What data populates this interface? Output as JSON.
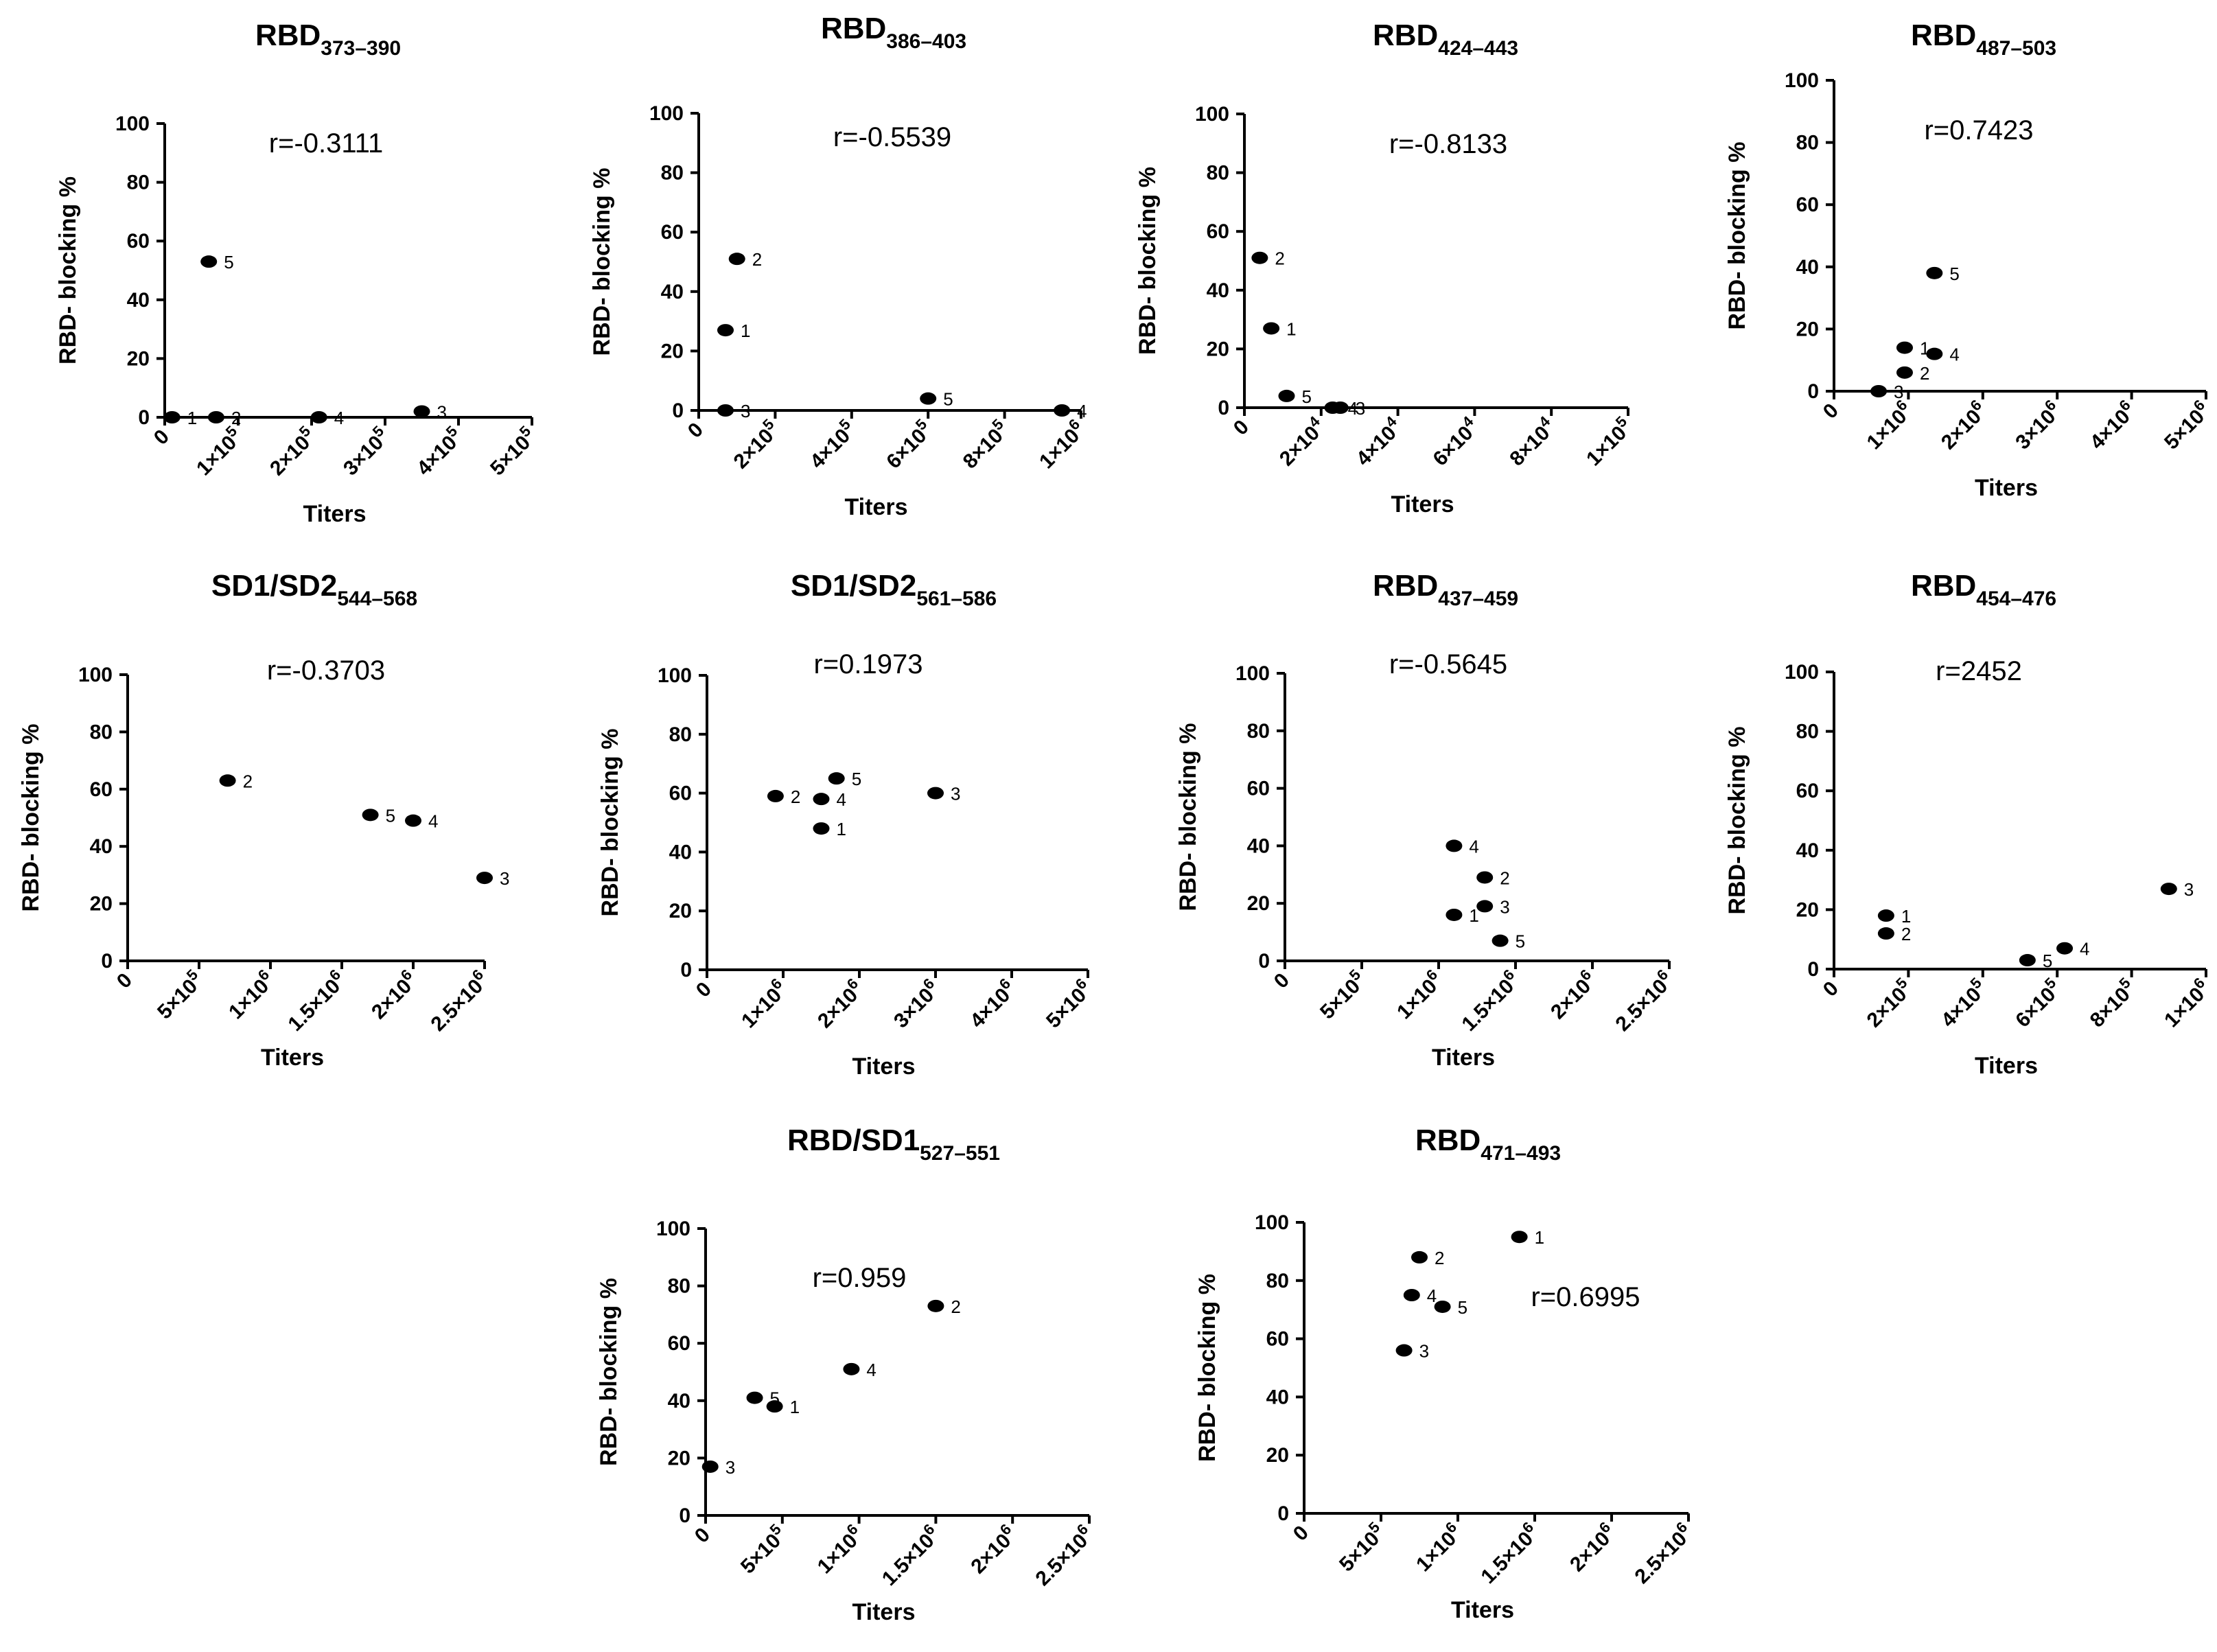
{
  "chart_data": [
    {
      "type": "scatter",
      "title": "RBD",
      "title_sub": "373–390",
      "xlabel": "Titers",
      "ylabel": "RBD- blocking %",
      "xlim": [
        0,
        500000
      ],
      "ylim": [
        0,
        100
      ],
      "x_ticks": [
        0,
        100000,
        200000,
        300000,
        400000,
        500000
      ],
      "x_tick_labels": [
        "0",
        "1×10^5",
        "2×10^5",
        "3×10^5",
        "4×10^5",
        "5×10^5"
      ],
      "y_ticks": [
        0,
        20,
        40,
        60,
        80,
        100
      ],
      "y_tick_labels": [
        "0",
        "20",
        "40",
        "60",
        "80",
        "100"
      ],
      "annotation": "r=-0.3111",
      "points": [
        {
          "label": "1",
          "x": 10000,
          "y": 0
        },
        {
          "label": "2",
          "x": 70000,
          "y": 0
        },
        {
          "label": "3",
          "x": 350000,
          "y": 2
        },
        {
          "label": "4",
          "x": 210000,
          "y": 0
        },
        {
          "label": "5",
          "x": 60000,
          "y": 53
        }
      ]
    },
    {
      "type": "scatter",
      "title": "RBD",
      "title_sub": "386–403",
      "xlabel": "Titers",
      "ylabel": "RBD- blocking %",
      "xlim": [
        0,
        1000000
      ],
      "ylim": [
        0,
        100
      ],
      "x_ticks": [
        0,
        200000,
        400000,
        600000,
        800000,
        1000000
      ],
      "x_tick_labels": [
        "0",
        "2×10^5",
        "4×10^5",
        "6×10^5",
        "8×10^5",
        "1×10^6"
      ],
      "y_ticks": [
        0,
        20,
        40,
        60,
        80,
        100
      ],
      "y_tick_labels": [
        "0",
        "20",
        "40",
        "60",
        "80",
        "100"
      ],
      "annotation": "r=-0.5539",
      "points": [
        {
          "label": "1",
          "x": 70000,
          "y": 27
        },
        {
          "label": "2",
          "x": 100000,
          "y": 51
        },
        {
          "label": "3",
          "x": 70000,
          "y": 0
        },
        {
          "label": "4",
          "x": 950000,
          "y": 0
        },
        {
          "label": "5",
          "x": 600000,
          "y": 4
        }
      ]
    },
    {
      "type": "scatter",
      "title": "RBD",
      "title_sub": "424–443",
      "xlabel": "Titers",
      "ylabel": "RBD- blocking %",
      "xlim": [
        0,
        100000
      ],
      "ylim": [
        0,
        100
      ],
      "x_ticks": [
        0,
        20000,
        40000,
        60000,
        80000,
        100000
      ],
      "x_tick_labels": [
        "0",
        "2×10^4",
        "4×10^4",
        "6×10^4",
        "8×10^4",
        "1×10^5"
      ],
      "y_ticks": [
        0,
        20,
        40,
        60,
        80,
        100
      ],
      "y_tick_labels": [
        "0",
        "20",
        "40",
        "60",
        "80",
        "100"
      ],
      "annotation": "r=-0.8133",
      "points": [
        {
          "label": "1",
          "x": 7000,
          "y": 27
        },
        {
          "label": "2",
          "x": 4000,
          "y": 51
        },
        {
          "label": "3",
          "x": 25000,
          "y": 0
        },
        {
          "label": "4",
          "x": 23000,
          "y": 0
        },
        {
          "label": "5",
          "x": 11000,
          "y": 4
        }
      ]
    },
    {
      "type": "scatter",
      "title": "RBD",
      "title_sub": "487–503",
      "xlabel": "Titers",
      "ylabel": "RBD- blocking %",
      "xlim": [
        0,
        5000000
      ],
      "ylim": [
        0,
        100
      ],
      "x_ticks": [
        0,
        1000000,
        2000000,
        3000000,
        4000000,
        5000000
      ],
      "x_tick_labels": [
        "0",
        "1×10^6",
        "2×10^6",
        "3×10^6",
        "4×10^6",
        "5×10^6"
      ],
      "y_ticks": [
        0,
        20,
        40,
        60,
        80,
        100
      ],
      "y_tick_labels": [
        "0",
        "20",
        "40",
        "60",
        "80",
        "100"
      ],
      "annotation": "r=0.7423",
      "points": [
        {
          "label": "1",
          "x": 950000,
          "y": 14
        },
        {
          "label": "2",
          "x": 950000,
          "y": 6
        },
        {
          "label": "3",
          "x": 600000,
          "y": 0
        },
        {
          "label": "4",
          "x": 1350000,
          "y": 12
        },
        {
          "label": "5",
          "x": 1350000,
          "y": 38
        }
      ]
    },
    {
      "type": "scatter",
      "title": "SD1/SD2",
      "title_sub": "544–568",
      "xlabel": "Titers",
      "ylabel": "RBD- blocking %",
      "xlim": [
        0,
        2500000
      ],
      "ylim": [
        0,
        100
      ],
      "x_ticks": [
        0,
        500000,
        1000000,
        1500000,
        2000000,
        2500000
      ],
      "x_tick_labels": [
        "0",
        "5×10^5",
        "1×10^6",
        "1.5×10^6",
        "2×10^6",
        "2.5×10^6"
      ],
      "y_ticks": [
        0,
        20,
        40,
        60,
        80,
        100
      ],
      "y_tick_labels": [
        "0",
        "20",
        "40",
        "60",
        "80",
        "100"
      ],
      "annotation": "r=-0.3703",
      "points": [
        {
          "label": "2",
          "x": 700000,
          "y": 63
        },
        {
          "label": "3",
          "x": 2500000,
          "y": 29
        },
        {
          "label": "4",
          "x": 2000000,
          "y": 49
        },
        {
          "label": "5",
          "x": 1700000,
          "y": 51
        }
      ]
    },
    {
      "type": "scatter",
      "title": "SD1/SD2",
      "title_sub": "561–586",
      "xlabel": "Titers",
      "ylabel": "RBD- blocking %",
      "xlim": [
        0,
        5000000
      ],
      "ylim": [
        0,
        100
      ],
      "x_ticks": [
        0,
        1000000,
        2000000,
        3000000,
        4000000,
        5000000
      ],
      "x_tick_labels": [
        "0",
        "1×10^6",
        "2×10^6",
        "3×10^6",
        "4×10^6",
        "5×10^6"
      ],
      "y_ticks": [
        0,
        20,
        40,
        60,
        80,
        100
      ],
      "y_tick_labels": [
        "0",
        "20",
        "40",
        "60",
        "80",
        "100"
      ],
      "annotation": "r=0.1973",
      "points": [
        {
          "label": "1",
          "x": 1500000,
          "y": 48
        },
        {
          "label": "2",
          "x": 900000,
          "y": 59
        },
        {
          "label": "3",
          "x": 3000000,
          "y": 60
        },
        {
          "label": "4",
          "x": 1500000,
          "y": 58
        },
        {
          "label": "5",
          "x": 1700000,
          "y": 65
        }
      ]
    },
    {
      "type": "scatter",
      "title": "RBD",
      "title_sub": "437–459",
      "xlabel": "Titers",
      "ylabel": "RBD- blocking %",
      "xlim": [
        0,
        2500000
      ],
      "ylim": [
        0,
        100
      ],
      "x_ticks": [
        0,
        500000,
        1000000,
        1500000,
        2000000,
        2500000
      ],
      "x_tick_labels": [
        "0",
        "5×10^5",
        "1×10^6",
        "1.5×10^6",
        "2×10^6",
        "2.5×10^6"
      ],
      "y_ticks": [
        0,
        20,
        40,
        60,
        80,
        100
      ],
      "y_tick_labels": [
        "0",
        "20",
        "40",
        "60",
        "80",
        "100"
      ],
      "annotation": "r=-0.5645",
      "points": [
        {
          "label": "1",
          "x": 1100000,
          "y": 16
        },
        {
          "label": "2",
          "x": 1300000,
          "y": 29
        },
        {
          "label": "3",
          "x": 1300000,
          "y": 19
        },
        {
          "label": "4",
          "x": 1100000,
          "y": 40
        },
        {
          "label": "5",
          "x": 1400000,
          "y": 7
        }
      ]
    },
    {
      "type": "scatter",
      "title": "RBD",
      "title_sub": "454–476",
      "xlabel": "Titers",
      "ylabel": "RBD- blocking %",
      "xlim": [
        0,
        1000000
      ],
      "ylim": [
        0,
        100
      ],
      "x_ticks": [
        0,
        200000,
        400000,
        600000,
        800000,
        1000000
      ],
      "x_tick_labels": [
        "0",
        "2×10^5",
        "4×10^5",
        "6×10^5",
        "8×10^5",
        "1×10^6"
      ],
      "y_ticks": [
        0,
        20,
        40,
        60,
        80,
        100
      ],
      "y_tick_labels": [
        "0",
        "20",
        "40",
        "60",
        "80",
        "100"
      ],
      "annotation": "r=2452",
      "points": [
        {
          "label": "1",
          "x": 140000,
          "y": 18
        },
        {
          "label": "2",
          "x": 140000,
          "y": 12
        },
        {
          "label": "3",
          "x": 900000,
          "y": 27
        },
        {
          "label": "4",
          "x": 620000,
          "y": 7
        },
        {
          "label": "5",
          "x": 520000,
          "y": 3
        }
      ]
    },
    {
      "type": "scatter",
      "title": "RBD/SD1",
      "title_sub": "527–551",
      "xlabel": "Titers",
      "ylabel": "RBD- blocking %",
      "xlim": [
        0,
        2500000
      ],
      "ylim": [
        0,
        100
      ],
      "x_ticks": [
        0,
        500000,
        1000000,
        1500000,
        2000000,
        2500000
      ],
      "x_tick_labels": [
        "0",
        "5×10^5",
        "1×10^6",
        "1.5×10^6",
        "2×10^6",
        "2.5×10^6"
      ],
      "y_ticks": [
        0,
        20,
        40,
        60,
        80,
        100
      ],
      "y_tick_labels": [
        "0",
        "20",
        "40",
        "60",
        "80",
        "100"
      ],
      "annotation": "r=0.959",
      "points": [
        {
          "label": "1",
          "x": 450000,
          "y": 38
        },
        {
          "label": "2",
          "x": 1500000,
          "y": 73
        },
        {
          "label": "3",
          "x": 30000,
          "y": 17
        },
        {
          "label": "4",
          "x": 950000,
          "y": 51
        },
        {
          "label": "5",
          "x": 320000,
          "y": 41
        }
      ]
    },
    {
      "type": "scatter",
      "title": "RBD",
      "title_sub": "471–493",
      "xlabel": "Titers",
      "ylabel": "RBD- blocking %",
      "xlim": [
        0,
        2500000
      ],
      "ylim": [
        0,
        100
      ],
      "x_ticks": [
        0,
        500000,
        1000000,
        1500000,
        2000000,
        2500000
      ],
      "x_tick_labels": [
        "0",
        "5×10^5",
        "1×10^6",
        "1.5×10^6",
        "2×10^6",
        "2.5×10^6"
      ],
      "y_ticks": [
        0,
        20,
        40,
        60,
        80,
        100
      ],
      "y_tick_labels": [
        "0",
        "20",
        "40",
        "60",
        "80",
        "100"
      ],
      "annotation": "r=0.6995",
      "points": [
        {
          "label": "1",
          "x": 1400000,
          "y": 95
        },
        {
          "label": "2",
          "x": 750000,
          "y": 88
        },
        {
          "label": "3",
          "x": 650000,
          "y": 56
        },
        {
          "label": "4",
          "x": 700000,
          "y": 75
        },
        {
          "label": "5",
          "x": 900000,
          "y": 71
        }
      ]
    }
  ]
}
